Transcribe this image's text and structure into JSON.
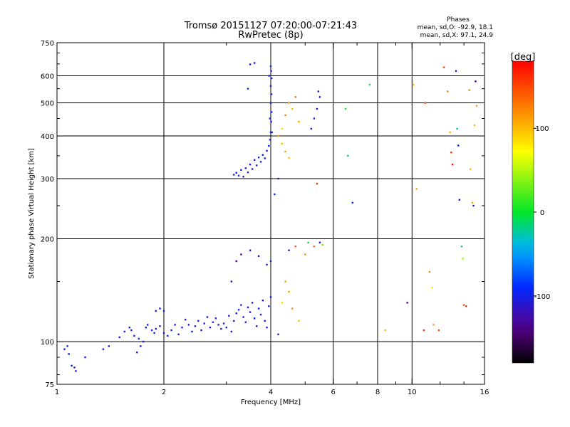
{
  "chart_data": {
    "type": "scatter",
    "title": "Tromsø 20151127 07:20:00-07:21:43",
    "subtitle": "RwPretec (8p)",
    "xlabel": "Frequency [MHz]",
    "ylabel": "Stationary phase Virtual Height [km]",
    "x_scale": "log",
    "y_scale": "log",
    "xlim": [
      1,
      16
    ],
    "ylim": [
      75,
      750
    ],
    "x_ticks": [
      1,
      2,
      4,
      6,
      8,
      10,
      16
    ],
    "x_ticklabels": [
      "1",
      "2",
      "4",
      "6",
      "8",
      "10",
      "16"
    ],
    "y_ticks": [
      75,
      100,
      200,
      300,
      400,
      500,
      600,
      750
    ],
    "y_ticklabels": [
      "75",
      "100",
      "200",
      "300",
      "400",
      "500",
      "600",
      "750"
    ],
    "grid": true,
    "phases_legend": {
      "title": "Phases",
      "o_line": "mean, sd,O: -92.9, 18.1",
      "x_line": "mean, sd,X:  97.1, 24.9"
    },
    "colorbar": {
      "label": "[deg]",
      "range": [
        -180,
        180
      ],
      "ticks": [
        100,
        0,
        -100
      ],
      "ticklabels": [
        "100",
        "0",
        "-100"
      ]
    },
    "points": [
      [
        1.05,
        95,
        -100
      ],
      [
        1.07,
        97,
        -100
      ],
      [
        1.08,
        92,
        -100
      ],
      [
        1.1,
        85,
        -100
      ],
      [
        1.12,
        84,
        -100
      ],
      [
        1.13,
        82,
        -100
      ],
      [
        1.2,
        90,
        -100
      ],
      [
        1.35,
        95,
        -100
      ],
      [
        1.4,
        97,
        -100
      ],
      [
        1.5,
        103,
        -100
      ],
      [
        1.55,
        107,
        -100
      ],
      [
        1.6,
        110,
        -100
      ],
      [
        1.62,
        108,
        -100
      ],
      [
        1.65,
        104,
        -100
      ],
      [
        1.7,
        102,
        -100
      ],
      [
        1.72,
        97,
        -100
      ],
      [
        1.75,
        100,
        -100
      ],
      [
        1.68,
        93,
        -100
      ],
      [
        1.78,
        110,
        -100
      ],
      [
        1.8,
        112,
        -100
      ],
      [
        1.85,
        108,
        -100
      ],
      [
        1.88,
        106,
        -100
      ],
      [
        1.9,
        109,
        -100
      ],
      [
        1.95,
        111,
        -100
      ],
      [
        2.0,
        106,
        -100
      ],
      [
        2.05,
        104,
        -100
      ],
      [
        2.1,
        108,
        -100
      ],
      [
        2.15,
        112,
        -100
      ],
      [
        2.2,
        105,
        -100
      ],
      [
        2.25,
        110,
        -100
      ],
      [
        2.3,
        116,
        -100
      ],
      [
        2.35,
        112,
        -100
      ],
      [
        2.4,
        107,
        -100
      ],
      [
        2.45,
        111,
        -100
      ],
      [
        2.5,
        115,
        -100
      ],
      [
        2.55,
        108,
        -100
      ],
      [
        2.6,
        113,
        -100
      ],
      [
        2.65,
        118,
        -100
      ],
      [
        2.7,
        110,
        -100
      ],
      [
        2.75,
        114,
        -100
      ],
      [
        2.8,
        117,
        -100
      ],
      [
        2.85,
        112,
        -100
      ],
      [
        2.9,
        109,
        -100
      ],
      [
        2.95,
        113,
        -100
      ],
      [
        3.0,
        110,
        -100
      ],
      [
        3.05,
        119,
        -100
      ],
      [
        3.1,
        107,
        -100
      ],
      [
        3.15,
        115,
        -100
      ],
      [
        3.2,
        121,
        -100
      ],
      [
        3.25,
        124,
        -100
      ],
      [
        3.3,
        128,
        -100
      ],
      [
        3.35,
        118,
        -100
      ],
      [
        3.4,
        114,
        -100
      ],
      [
        3.45,
        126,
        -100
      ],
      [
        3.5,
        122,
        -100
      ],
      [
        3.55,
        130,
        -100
      ],
      [
        3.6,
        117,
        -100
      ],
      [
        3.65,
        111,
        -100
      ],
      [
        3.7,
        125,
        -100
      ],
      [
        3.75,
        120,
        -100
      ],
      [
        3.8,
        132,
        -100
      ],
      [
        3.85,
        115,
        -100
      ],
      [
        3.9,
        110,
        -100
      ],
      [
        3.95,
        127,
        -100
      ],
      [
        4.0,
        135,
        -100
      ],
      [
        1.9,
        123,
        -100
      ],
      [
        1.95,
        125,
        -100
      ],
      [
        2.0,
        123,
        -100
      ],
      [
        3.1,
        150,
        -110
      ],
      [
        3.2,
        172,
        -130
      ],
      [
        3.3,
        180,
        -120
      ],
      [
        3.5,
        185,
        -100
      ],
      [
        3.7,
        178,
        -120
      ],
      [
        3.9,
        168,
        -110
      ],
      [
        4.0,
        172,
        -100
      ],
      [
        3.15,
        308,
        -100
      ],
      [
        3.2,
        312,
        -100
      ],
      [
        3.25,
        306,
        -100
      ],
      [
        3.3,
        318,
        -100
      ],
      [
        3.35,
        304,
        -100
      ],
      [
        3.4,
        322,
        -100
      ],
      [
        3.45,
        313,
        -100
      ],
      [
        3.5,
        330,
        -100
      ],
      [
        3.55,
        320,
        -100
      ],
      [
        3.6,
        340,
        -100
      ],
      [
        3.65,
        328,
        -100
      ],
      [
        3.7,
        346,
        -100
      ],
      [
        3.75,
        336,
        -100
      ],
      [
        3.8,
        352,
        -100
      ],
      [
        3.85,
        344,
        -100
      ],
      [
        3.9,
        362,
        -100
      ],
      [
        3.95,
        374,
        -100
      ],
      [
        3.98,
        390,
        -100
      ],
      [
        4.0,
        410,
        -100
      ],
      [
        4.01,
        440,
        -100
      ],
      [
        4.02,
        470,
        -100
      ],
      [
        4.0,
        500,
        -100
      ],
      [
        4.02,
        530,
        -100
      ],
      [
        4.0,
        560,
        -100
      ],
      [
        4.02,
        590,
        -100
      ],
      [
        4.01,
        620,
        -100
      ],
      [
        4.0,
        640,
        -100
      ],
      [
        3.96,
        600,
        -100
      ],
      [
        3.98,
        450,
        -100
      ],
      [
        4.03,
        410,
        -100
      ],
      [
        3.5,
        648,
        -100
      ],
      [
        3.6,
        654,
        -100
      ],
      [
        3.45,
        550,
        -100
      ],
      [
        4.2,
        400,
        110
      ],
      [
        4.3,
        380,
        100
      ],
      [
        4.4,
        360,
        110
      ],
      [
        4.5,
        345,
        100
      ],
      [
        4.3,
        420,
        90
      ],
      [
        4.4,
        460,
        120
      ],
      [
        4.5,
        500,
        110
      ],
      [
        4.6,
        480,
        100
      ],
      [
        4.7,
        520,
        140
      ],
      [
        4.8,
        440,
        110
      ],
      [
        4.2,
        300,
        -120
      ],
      [
        4.1,
        270,
        -100
      ],
      [
        5.2,
        420,
        -100
      ],
      [
        5.3,
        450,
        -90
      ],
      [
        5.4,
        480,
        -100
      ],
      [
        5.5,
        520,
        -100
      ],
      [
        5.45,
        540,
        -110
      ],
      [
        5.4,
        290,
        160
      ],
      [
        6.5,
        480,
        10
      ],
      [
        6.6,
        350,
        -20
      ],
      [
        6.8,
        255,
        -100
      ],
      [
        7.6,
        565,
        -10
      ],
      [
        8.4,
        108,
        100
      ],
      [
        9.7,
        130,
        -130
      ],
      [
        10.1,
        565,
        100
      ],
      [
        10.3,
        280,
        110
      ],
      [
        10.8,
        108,
        160
      ],
      [
        10.9,
        500,
        140
      ],
      [
        11.2,
        160,
        120
      ],
      [
        11.4,
        144,
        80
      ],
      [
        11.5,
        112,
        110
      ],
      [
        11.9,
        108,
        150
      ],
      [
        12.3,
        635,
        150
      ],
      [
        12.6,
        540,
        120
      ],
      [
        12.8,
        410,
        100
      ],
      [
        12.9,
        358,
        160
      ],
      [
        13.0,
        330,
        170
      ],
      [
        13.3,
        620,
        -110
      ],
      [
        13.4,
        420,
        -30
      ],
      [
        13.5,
        375,
        -100
      ],
      [
        13.6,
        260,
        -100
      ],
      [
        13.8,
        190,
        -10
      ],
      [
        13.9,
        175,
        40
      ],
      [
        14.0,
        128,
        150
      ],
      [
        14.2,
        127,
        160
      ],
      [
        14.5,
        545,
        120
      ],
      [
        14.6,
        320,
        100
      ],
      [
        14.8,
        255,
        110
      ],
      [
        14.9,
        250,
        -110
      ],
      [
        15.0,
        430,
        100
      ],
      [
        15.1,
        578,
        -130
      ],
      [
        15.2,
        490,
        110
      ],
      [
        4.5,
        185,
        -120
      ],
      [
        4.7,
        190,
        150
      ],
      [
        5.0,
        180,
        120
      ],
      [
        5.3,
        190,
        140
      ],
      [
        5.5,
        195,
        -100
      ],
      [
        4.4,
        150,
        110
      ],
      [
        4.6,
        125,
        120
      ],
      [
        4.8,
        115,
        100
      ],
      [
        4.3,
        130,
        90
      ],
      [
        4.5,
        140,
        110
      ],
      [
        4.2,
        105,
        -110
      ],
      [
        5.1,
        195,
        0
      ],
      [
        5.6,
        192,
        30
      ]
    ]
  }
}
